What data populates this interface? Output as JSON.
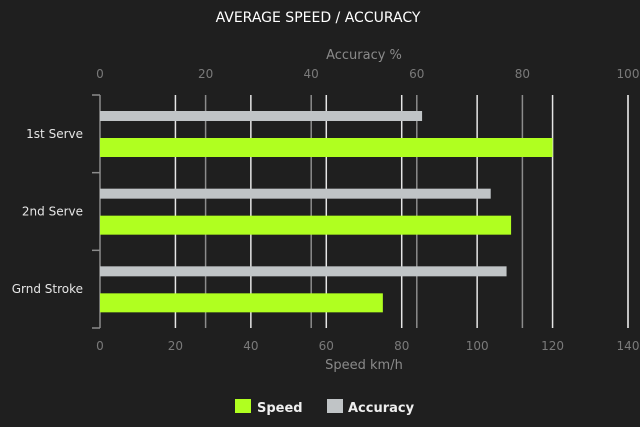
{
  "chart_data": {
    "type": "bar",
    "orientation": "horizontal",
    "title": "AVERAGE SPEED / ACCURACY",
    "categories": [
      "1st Serve",
      "2nd Serve",
      "Grnd Stroke"
    ],
    "series": [
      {
        "name": "Speed",
        "axis": "bottom",
        "color": "#b0ff20",
        "values": [
          120,
          109,
          75
        ]
      },
      {
        "name": "Accuracy",
        "axis": "top",
        "color": "#c0c4c6",
        "values": [
          61,
          74,
          77
        ]
      }
    ],
    "xaxis_bottom": {
      "label": "Speed km/h",
      "range": [
        0,
        140
      ],
      "ticks": [
        "0",
        "20",
        "40",
        "60",
        "80",
        "100",
        "120",
        "140"
      ]
    },
    "xaxis_top": {
      "label": "Accuracy %",
      "range": [
        0,
        100
      ],
      "ticks": [
        "0",
        "20",
        "40",
        "60",
        "80",
        "100"
      ]
    },
    "grid": true,
    "legend": "bottom"
  }
}
